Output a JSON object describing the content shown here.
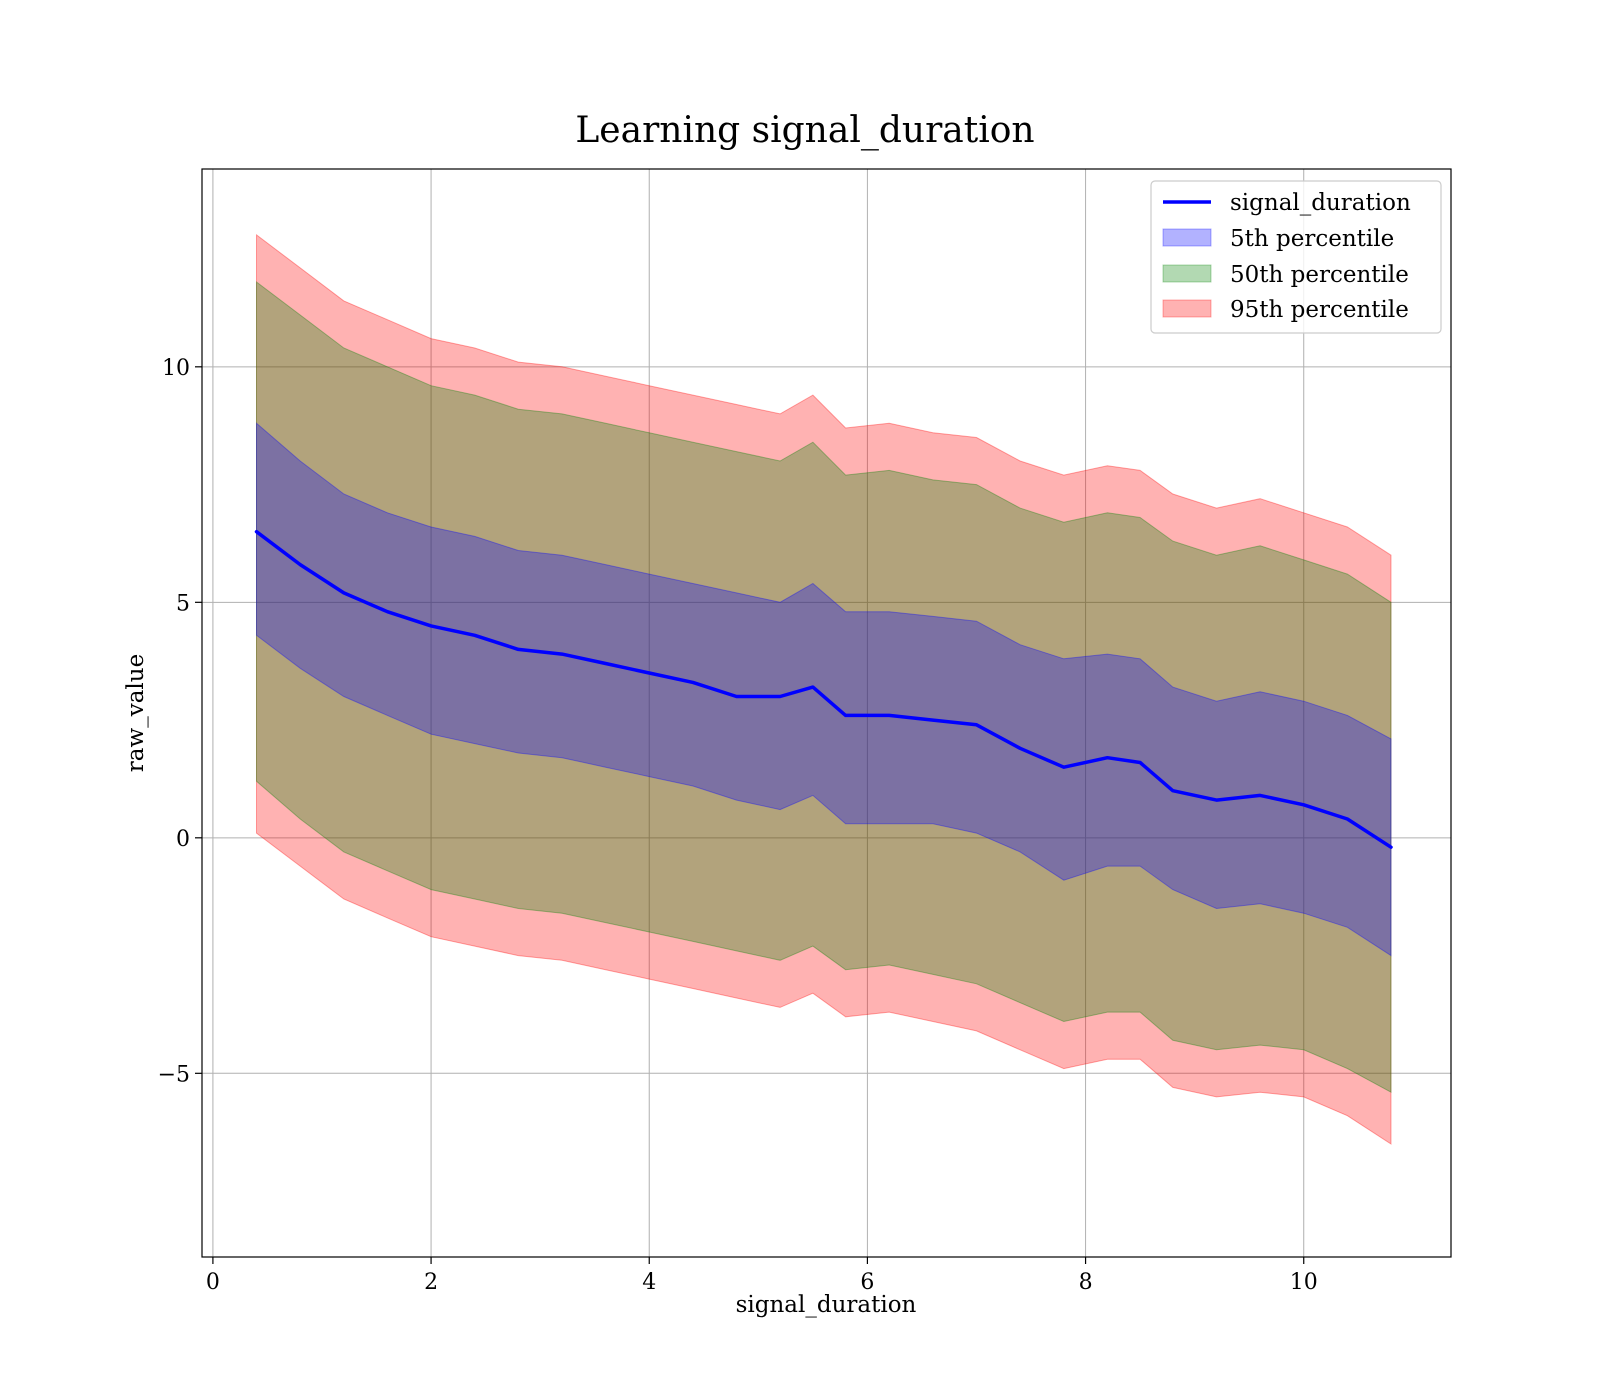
{
  "chart_data": {
    "type": "area",
    "title": "Learning signal_duration",
    "xlabel": "signal_duration",
    "ylabel": "raw_value",
    "xlim": [
      -0.1,
      11.35
    ],
    "ylim": [
      -8.9,
      14.2
    ],
    "xticks": [
      0,
      2,
      4,
      6,
      8,
      10
    ],
    "xtick_labels": [
      "0",
      "2",
      "4",
      "6",
      "8",
      "10"
    ],
    "yticks": [
      -5,
      0,
      5,
      10
    ],
    "ytick_labels": [
      "−5",
      "0",
      "5",
      "10"
    ],
    "grid": true,
    "legend_position": "top-right",
    "colors": {
      "line": "#0000ff",
      "band_5": "#0000ff",
      "band_50": "#008000",
      "band_95": "#ff0000"
    },
    "x": [
      0.4,
      0.8,
      1.2,
      1.6,
      2.0,
      2.4,
      2.8,
      3.2,
      3.6,
      4.0,
      4.4,
      4.8,
      5.2,
      5.5,
      5.8,
      6.2,
      6.6,
      7.0,
      7.4,
      7.8,
      8.2,
      8.5,
      8.8,
      9.2,
      9.6,
      10.0,
      10.4,
      10.8
    ],
    "series": [
      {
        "name": "signal_duration",
        "type": "line",
        "values": [
          6.5,
          5.8,
          5.2,
          4.8,
          4.5,
          4.3,
          4.0,
          3.9,
          3.7,
          3.5,
          3.3,
          3.0,
          3.0,
          3.2,
          2.6,
          2.6,
          2.5,
          2.4,
          1.9,
          1.5,
          1.7,
          1.6,
          1.0,
          0.8,
          0.9,
          0.7,
          0.4,
          -0.2
        ]
      },
      {
        "name": "5th percentile",
        "type": "band",
        "lower": [
          4.3,
          3.6,
          3.0,
          2.6,
          2.2,
          2.0,
          1.8,
          1.7,
          1.5,
          1.3,
          1.1,
          0.8,
          0.6,
          0.9,
          0.3,
          0.3,
          0.3,
          0.1,
          -0.3,
          -0.9,
          -0.6,
          -0.6,
          -1.1,
          -1.5,
          -1.4,
          -1.6,
          -1.9,
          -2.5
        ],
        "upper": [
          8.8,
          8.0,
          7.3,
          6.9,
          6.6,
          6.4,
          6.1,
          6.0,
          5.8,
          5.6,
          5.4,
          5.2,
          5.0,
          5.4,
          4.8,
          4.8,
          4.7,
          4.6,
          4.1,
          3.8,
          3.9,
          3.8,
          3.2,
          2.9,
          3.1,
          2.9,
          2.6,
          2.1
        ]
      },
      {
        "name": "50th percentile",
        "type": "band",
        "lower": [
          1.2,
          0.4,
          -0.3,
          -0.7,
          -1.1,
          -1.3,
          -1.5,
          -1.6,
          -1.8,
          -2.0,
          -2.2,
          -2.4,
          -2.6,
          -2.3,
          -2.8,
          -2.7,
          -2.9,
          -3.1,
          -3.5,
          -3.9,
          -3.7,
          -3.7,
          -4.3,
          -4.5,
          -4.4,
          -4.5,
          -4.9,
          -5.4
        ],
        "upper": [
          11.8,
          11.1,
          10.4,
          10.0,
          9.6,
          9.4,
          9.1,
          9.0,
          8.8,
          8.6,
          8.4,
          8.2,
          8.0,
          8.4,
          7.7,
          7.8,
          7.6,
          7.5,
          7.0,
          6.7,
          6.9,
          6.8,
          6.3,
          6.0,
          6.2,
          5.9,
          5.6,
          5.0
        ]
      },
      {
        "name": "95th percentile",
        "type": "band",
        "lower": [
          0.1,
          -0.6,
          -1.3,
          -1.7,
          -2.1,
          -2.3,
          -2.5,
          -2.6,
          -2.8,
          -3.0,
          -3.2,
          -3.4,
          -3.6,
          -3.3,
          -3.8,
          -3.7,
          -3.9,
          -4.1,
          -4.5,
          -4.9,
          -4.7,
          -4.7,
          -5.3,
          -5.5,
          -5.4,
          -5.5,
          -5.9,
          -6.5
        ],
        "upper": [
          12.8,
          12.1,
          11.4,
          11.0,
          10.6,
          10.4,
          10.1,
          10.0,
          9.8,
          9.6,
          9.4,
          9.2,
          9.0,
          9.4,
          8.7,
          8.8,
          8.6,
          8.5,
          8.0,
          7.7,
          7.9,
          7.8,
          7.3,
          7.0,
          7.2,
          6.9,
          6.6,
          6.0
        ]
      }
    ]
  }
}
